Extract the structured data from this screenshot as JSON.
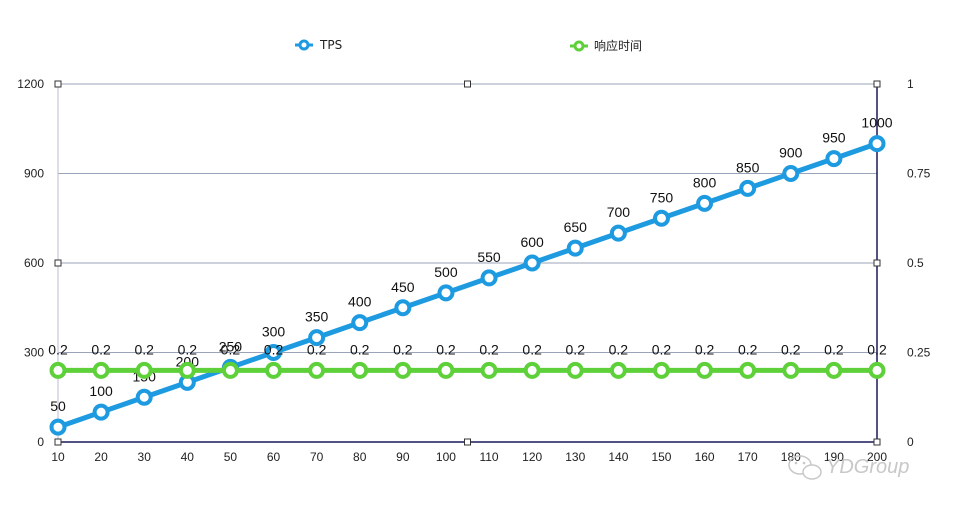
{
  "chart_data": {
    "type": "line",
    "title": "",
    "xlabel": "",
    "ylabel": "",
    "categories": [
      "10",
      "20",
      "30",
      "40",
      "50",
      "60",
      "70",
      "80",
      "90",
      "100",
      "110",
      "120",
      "130",
      "140",
      "150",
      "160",
      "170",
      "180",
      "190",
      "200"
    ],
    "x_tick_labels": [
      "10",
      "20",
      "30",
      "40",
      "50",
      "60",
      "70",
      "80",
      "90",
      "100",
      "110",
      "120",
      "130",
      "140",
      "150",
      "160",
      "170",
      "180",
      "190",
      "200"
    ],
    "ylim": [
      0,
      1200
    ],
    "y_ticks": [
      "0",
      "300",
      "600",
      "900",
      "1200"
    ],
    "y2lim": [
      0,
      1
    ],
    "y2_ticks": [
      "0",
      "0.25",
      "0.5",
      "0.75",
      "1"
    ],
    "legend_position": "top",
    "grid": true,
    "series": [
      {
        "name": "TPS",
        "axis": "left",
        "color": "#1E9BE0",
        "values": [
          50,
          100,
          150,
          200,
          250,
          300,
          350,
          400,
          450,
          500,
          550,
          600,
          650,
          700,
          750,
          800,
          850,
          900,
          950,
          1000
        ],
        "labels": [
          "50",
          "100",
          "150",
          "200",
          "250",
          "300",
          "350",
          "400",
          "450",
          "500",
          "550",
          "600",
          "650",
          "700",
          "750",
          "800",
          "850",
          "900",
          "950",
          "1000"
        ]
      },
      {
        "name": "响应时间",
        "axis": "right",
        "color": "#5ED03A",
        "values": [
          0.2,
          0.2,
          0.2,
          0.2,
          0.2,
          0.2,
          0.2,
          0.2,
          0.2,
          0.2,
          0.2,
          0.2,
          0.2,
          0.2,
          0.2,
          0.2,
          0.2,
          0.2,
          0.2,
          0.2
        ],
        "labels": [
          "0.2",
          "0.2",
          "0.2",
          "0.2",
          "0.2",
          "0.2",
          "0.2",
          "0.2",
          "0.2",
          "0.2",
          "0.2",
          "0.2",
          "0.2",
          "0.2",
          "0.2",
          "0.2",
          "0.2",
          "0.2",
          "0.2",
          "0.2"
        ]
      }
    ]
  },
  "watermark": {
    "text": "YDGroup",
    "icon": "wechat-icon"
  }
}
